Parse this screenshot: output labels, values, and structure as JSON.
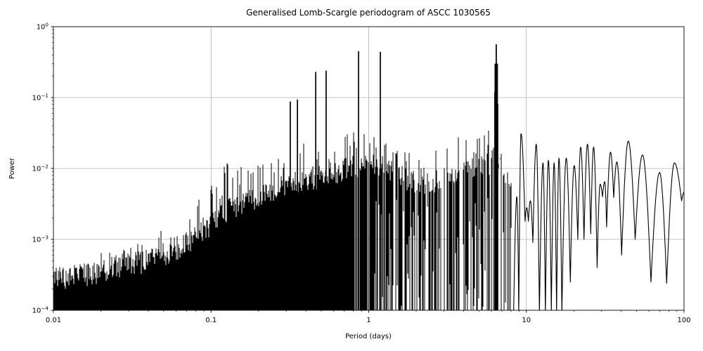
{
  "figure": {
    "title": "Generalised Lomb-Scargle periodogram of ASCC 1030565",
    "xlabel": "Period (days)",
    "ylabel": "Power"
  },
  "chart_data": {
    "type": "line",
    "title": "Generalised Lomb-Scargle periodogram of ASCC 1030565",
    "xlabel": "Period (days)",
    "ylabel": "Power",
    "xscale": "log",
    "yscale": "log",
    "xlim": [
      0.01,
      100
    ],
    "ylim": [
      0.0001,
      1
    ],
    "grid": true,
    "legend": "none",
    "line_color": "#000000",
    "grid_color": "#b0b0b0",
    "x_tick_values": [
      0.01,
      0.1,
      1,
      10,
      100
    ],
    "x_tick_labels": [
      "0.01",
      "0.1",
      "1",
      "10",
      "100"
    ],
    "y_tick_values": [
      1,
      0.1,
      0.01,
      0.001,
      0.0001
    ],
    "y_tick_base": "10",
    "y_tick_exponents": [
      "0",
      "−1",
      "−2",
      "−3",
      "−4"
    ],
    "main_peaks": [
      {
        "period_days": 0.318,
        "power": 0.088
      },
      {
        "period_days": 0.353,
        "power": 0.094
      },
      {
        "period_days": 0.461,
        "power": 0.23
      },
      {
        "period_days": 0.537,
        "power": 0.24
      },
      {
        "period_days": 0.862,
        "power": 0.45
      },
      {
        "period_days": 1.185,
        "power": 0.44
      },
      {
        "period_days": 6.45,
        "power": 0.56
      }
    ],
    "peak_cluster_6p45d": [
      [
        6.32,
        0.12
      ],
      [
        6.38,
        0.3
      ],
      [
        6.44,
        0.564
      ],
      [
        6.5,
        0.3
      ],
      [
        6.57,
        0.082
      ]
    ],
    "noise_envelope_period_typ_max": [
      [
        0.01,
        0.00028,
        0.0005
      ],
      [
        0.014,
        0.0003,
        0.00055
      ],
      [
        0.02,
        0.00034,
        0.00065
      ],
      [
        0.03,
        0.00042,
        0.0008
      ],
      [
        0.045,
        0.00055,
        0.0014
      ],
      [
        0.065,
        0.0008,
        0.0022
      ],
      [
        0.09,
        0.0014,
        0.005
      ],
      [
        0.105,
        0.0018,
        0.009
      ],
      [
        0.13,
        0.0026,
        0.013
      ],
      [
        0.17,
        0.0035,
        0.011
      ],
      [
        0.22,
        0.0045,
        0.013
      ],
      [
        0.3,
        0.006,
        0.02
      ],
      [
        0.4,
        0.007,
        0.023
      ],
      [
        0.55,
        0.008,
        0.024
      ],
      [
        0.75,
        0.01,
        0.035
      ],
      [
        1.0,
        0.012,
        0.04
      ],
      [
        1.3,
        0.01,
        0.03
      ],
      [
        1.8,
        0.007,
        0.02
      ],
      [
        2.4,
        0.006,
        0.015
      ],
      [
        3.2,
        0.008,
        0.028
      ],
      [
        4.3,
        0.01,
        0.04
      ],
      [
        5.3,
        0.011,
        0.03
      ],
      [
        6.0,
        0.012,
        0.05
      ],
      [
        6.45,
        0.02,
        0.08
      ],
      [
        7.0,
        0.01,
        0.025
      ],
      [
        7.8,
        0.006,
        0.015
      ],
      [
        8.25,
        0.003,
        0.008
      ]
    ],
    "smooth_tail_period_power_kind": [
      [
        8.3,
        9e-05,
        "v"
      ],
      [
        8.7,
        0.004,
        "t"
      ],
      [
        8.95,
        9e-05,
        "v"
      ],
      [
        9.25,
        0.031,
        "t"
      ],
      [
        9.8,
        0.0018,
        "v"
      ],
      [
        10.05,
        0.0028,
        "t"
      ],
      [
        10.3,
        0.0018,
        "v"
      ],
      [
        10.6,
        0.0035,
        "t"
      ],
      [
        11.0,
        0.0009,
        "v"
      ],
      [
        11.55,
        0.022,
        "t"
      ],
      [
        12.1,
        9e-05,
        "v"
      ],
      [
        12.75,
        0.012,
        "t"
      ],
      [
        13.2,
        9e-05,
        "v"
      ],
      [
        13.8,
        0.013,
        "t"
      ],
      [
        14.4,
        9e-05,
        "v"
      ],
      [
        15.0,
        0.012,
        "t"
      ],
      [
        15.55,
        9e-05,
        "v"
      ],
      [
        16.1,
        0.014,
        "t"
      ],
      [
        16.8,
        9e-05,
        "v"
      ],
      [
        17.9,
        0.014,
        "t"
      ],
      [
        19.0,
        0.00025,
        "v"
      ],
      [
        20.1,
        0.011,
        "t"
      ],
      [
        21.2,
        0.001,
        "v"
      ],
      [
        22.1,
        0.02,
        "t"
      ],
      [
        23.2,
        0.001,
        "v"
      ],
      [
        24.4,
        0.022,
        "t"
      ],
      [
        25.6,
        0.0012,
        "v"
      ],
      [
        26.7,
        0.02,
        "t"
      ],
      [
        28.1,
        0.0004,
        "v"
      ],
      [
        29.4,
        0.006,
        "t"
      ],
      [
        30.4,
        0.004,
        "v"
      ],
      [
        31.4,
        0.0065,
        "t"
      ],
      [
        32.3,
        0.0015,
        "v"
      ],
      [
        34.2,
        0.017,
        "t"
      ],
      [
        35.8,
        0.0039,
        "v"
      ],
      [
        37.5,
        0.0124,
        "t"
      ],
      [
        40.2,
        0.0006,
        "v"
      ],
      [
        44.3,
        0.0244,
        "t"
      ],
      [
        49.0,
        0.001,
        "v"
      ],
      [
        54.5,
        0.0155,
        "t"
      ],
      [
        61.7,
        0.00025,
        "v"
      ],
      [
        70.0,
        0.0088,
        "t"
      ],
      [
        77.6,
        0.00024,
        "v"
      ],
      [
        86.9,
        0.012,
        "t"
      ],
      [
        96.5,
        0.0035,
        "v"
      ],
      [
        100.0,
        0.0046,
        "t"
      ]
    ]
  }
}
